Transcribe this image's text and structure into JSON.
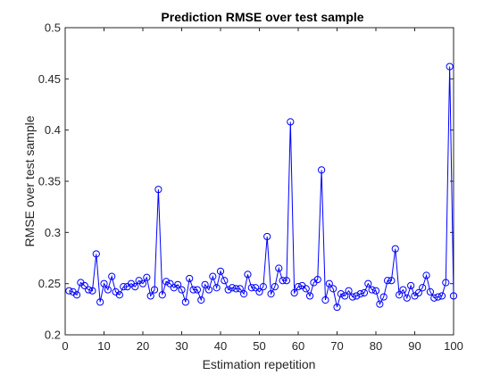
{
  "chart_data": {
    "type": "line",
    "title": "Prediction RMSE over test sample",
    "xlabel": "Estimation repetition",
    "ylabel": "RMSE over test sample",
    "xlim": [
      0,
      100
    ],
    "ylim": [
      0.2,
      0.5
    ],
    "xticks": [
      0,
      10,
      20,
      30,
      40,
      50,
      60,
      70,
      80,
      90,
      100
    ],
    "yticks": [
      0.2,
      0.25,
      0.3,
      0.35,
      0.4,
      0.45,
      0.5
    ],
    "xtick_labels": [
      "0",
      "10",
      "20",
      "30",
      "40",
      "50",
      "60",
      "70",
      "80",
      "90",
      "100"
    ],
    "ytick_labels": [
      "0.2",
      "0.25",
      "0.3",
      "0.35",
      "0.4",
      "0.45",
      "0.5"
    ],
    "grid": false,
    "marker": "circle",
    "color": "#0000ff",
    "series": [
      {
        "x": [
          1,
          2,
          3,
          4,
          5,
          6,
          7,
          8,
          9,
          10,
          11,
          12,
          13,
          14,
          15,
          16,
          17,
          18,
          19,
          20,
          21,
          22,
          23,
          24,
          25,
          26,
          27,
          28,
          29,
          30,
          31,
          32,
          33,
          34,
          35,
          36,
          37,
          38,
          39,
          40,
          41,
          42,
          43,
          44,
          45,
          46,
          47,
          48,
          49,
          50,
          51,
          52,
          53,
          54,
          55,
          56,
          57,
          58,
          59,
          60,
          61,
          62,
          63,
          64,
          65,
          66,
          67,
          68,
          69,
          70,
          71,
          72,
          73,
          74,
          75,
          76,
          77,
          78,
          79,
          80,
          81,
          82,
          83,
          84,
          85,
          86,
          87,
          88,
          89,
          90,
          91,
          92,
          93,
          94,
          95,
          96,
          97,
          98,
          99,
          100
        ],
        "values": [
          0.243,
          0.242,
          0.239,
          0.251,
          0.248,
          0.244,
          0.243,
          0.279,
          0.232,
          0.25,
          0.244,
          0.257,
          0.242,
          0.239,
          0.247,
          0.247,
          0.25,
          0.247,
          0.253,
          0.25,
          0.256,
          0.238,
          0.244,
          0.342,
          0.239,
          0.252,
          0.25,
          0.246,
          0.249,
          0.244,
          0.232,
          0.255,
          0.244,
          0.244,
          0.234,
          0.249,
          0.244,
          0.257,
          0.246,
          0.262,
          0.253,
          0.244,
          0.246,
          0.245,
          0.245,
          0.24,
          0.259,
          0.246,
          0.246,
          0.242,
          0.247,
          0.296,
          0.24,
          0.247,
          0.265,
          0.253,
          0.253,
          0.408,
          0.241,
          0.247,
          0.248,
          0.245,
          0.238,
          0.251,
          0.254,
          0.361,
          0.234,
          0.25,
          0.245,
          0.227,
          0.24,
          0.238,
          0.243,
          0.237,
          0.238,
          0.24,
          0.241,
          0.25,
          0.244,
          0.243,
          0.23,
          0.237,
          0.253,
          0.253,
          0.284,
          0.239,
          0.244,
          0.236,
          0.248,
          0.238,
          0.241,
          0.246,
          0.258,
          0.242,
          0.236,
          0.237,
          0.238,
          0.251,
          0.462,
          0.238
        ]
      }
    ]
  }
}
